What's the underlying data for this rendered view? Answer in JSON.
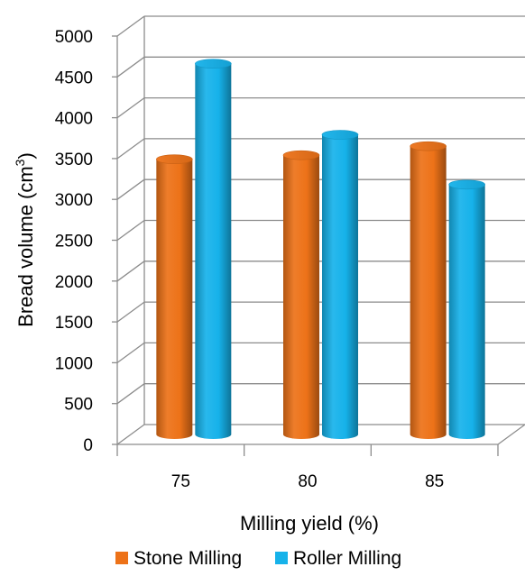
{
  "chart_data": {
    "type": "bar",
    "categories": [
      "75",
      "80",
      "85"
    ],
    "series": [
      {
        "name": "Stone Milling",
        "values": [
          3370,
          3420,
          3530
        ],
        "color": "#ED7218"
      },
      {
        "name": "Roller Milling",
        "values": [
          4540,
          3670,
          3060
        ],
        "color": "#16B2EA"
      }
    ],
    "xlabel": "Milling yield (%)",
    "ylabel": "Bread volume (cm",
    "ylabel_sup": "3",
    "ylabel_close": ")",
    "ylim": [
      0,
      5000
    ],
    "yticks": [
      "0",
      "500",
      "1000",
      "1500",
      "2000",
      "2500",
      "3000",
      "3500",
      "4000",
      "4500",
      "5000"
    ],
    "grid": true,
    "style": "3d-cylinder",
    "legend_position": "bottom"
  }
}
